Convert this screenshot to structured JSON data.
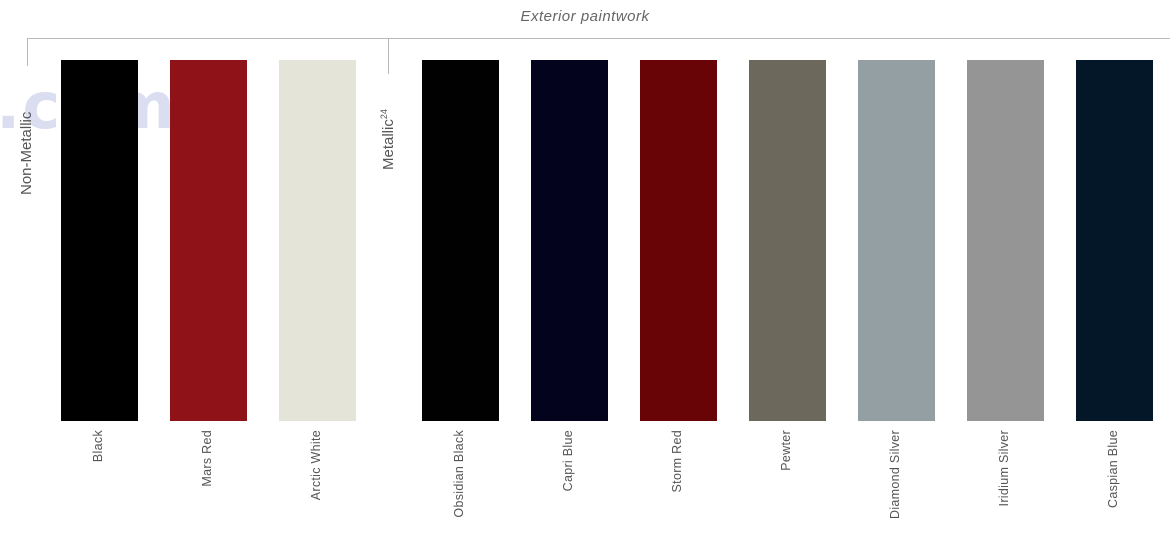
{
  "heading": "Exterior paintwork",
  "watermark": ".com",
  "groups": [
    {
      "label": "Non-Metallic",
      "sup": ""
    },
    {
      "label": "Metallic",
      "sup": "24"
    }
  ],
  "colors": [
    {
      "name": "Black",
      "hex": "#000000"
    },
    {
      "name": "Mars Red",
      "hex": "#8f1219"
    },
    {
      "name": "Arctic White",
      "hex": "#e4e4d9"
    },
    {
      "name": "Obsidian Black",
      "hex": "#010101"
    },
    {
      "name": "Capri Blue",
      "hex": "#04031d"
    },
    {
      "name": "Storm Red",
      "hex": "#680405"
    },
    {
      "name": "Pewter",
      "hex": "#6c695c"
    },
    {
      "name": "Diamond Silver",
      "hex": "#939fa3"
    },
    {
      "name": "Iridium Silver",
      "hex": "#959595"
    },
    {
      "name": "Caspian Blue",
      "hex": "#041729"
    }
  ]
}
